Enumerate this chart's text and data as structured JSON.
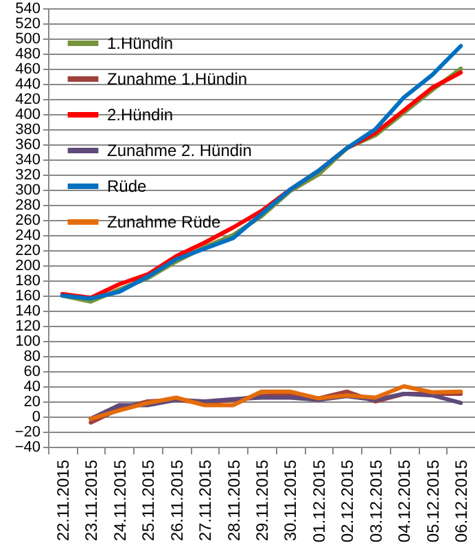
{
  "chart_data": {
    "type": "line",
    "categories": [
      "22.11.2015",
      "23.11.2015",
      "24.11.2015",
      "25.11.2015",
      "26.11.2015",
      "27.11.2015",
      "28.11.2015",
      "29.11.2015",
      "30.11.2015",
      "01.12.2015",
      "02.12.2015",
      "03.12.2015",
      "04.12.2015",
      "05.12.2015",
      "06.12.2015"
    ],
    "series": [
      {
        "name": "1.Hündin",
        "color": "#77933c",
        "values": [
          160,
          152,
          168,
          183,
          205,
          224,
          240,
          265,
          298,
          320,
          355,
          372,
          402,
          432,
          460
        ]
      },
      {
        "name": "Zunahme 1.Hündin",
        "color": "#a0413e",
        "values": [
          null,
          -8,
          10,
          20,
          22,
          18,
          22,
          27,
          30,
          24,
          33,
          20,
          30,
          30,
          30
        ]
      },
      {
        "name": "2.Hündin",
        "color": "#ff0000",
        "values": [
          162,
          157,
          175,
          188,
          212,
          230,
          250,
          272,
          300,
          325,
          355,
          375,
          405,
          435,
          455
        ]
      },
      {
        "name": "Zunahme 2. Hündin",
        "color": "#604a7b",
        "values": [
          null,
          -3,
          15,
          15,
          22,
          20,
          23,
          25,
          25,
          22,
          27,
          22,
          30,
          28,
          18
        ]
      },
      {
        "name": "Rüde",
        "color": "#0070c0",
        "values": [
          160,
          156,
          165,
          185,
          208,
          222,
          236,
          268,
          300,
          325,
          355,
          380,
          422,
          452,
          490
        ]
      },
      {
        "name": "Zunahme Rüde",
        "color": "#e46c0a",
        "values": [
          null,
          -3,
          8,
          18,
          25,
          15,
          15,
          33,
          33,
          24,
          28,
          25,
          40,
          32,
          33
        ]
      }
    ],
    "ylim": [
      -40,
      540
    ],
    "yticks": [
      -40,
      -20,
      0,
      20,
      40,
      60,
      80,
      100,
      120,
      140,
      160,
      180,
      200,
      220,
      240,
      260,
      280,
      300,
      320,
      340,
      360,
      380,
      400,
      420,
      440,
      460,
      480,
      500,
      520,
      540
    ],
    "grid": "y",
    "legend": "top left",
    "marker": "none",
    "line_style": "solid"
  }
}
